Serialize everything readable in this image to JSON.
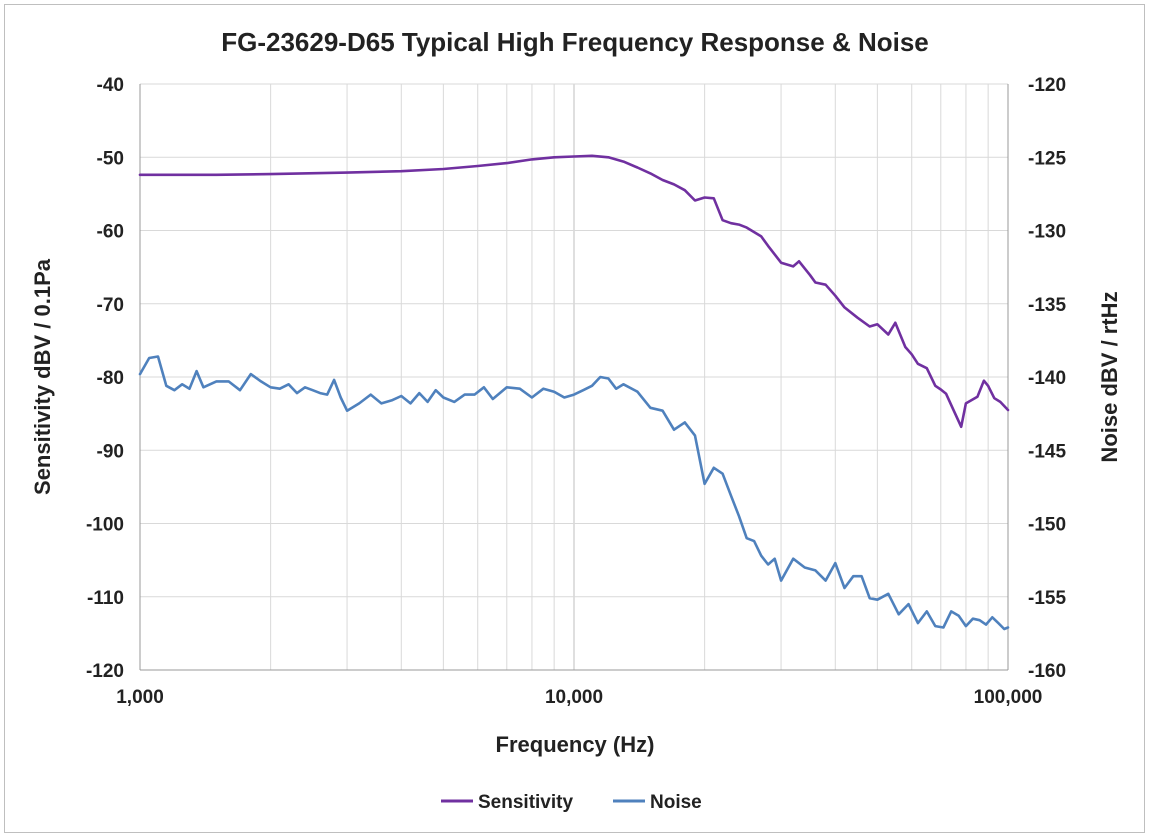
{
  "chart_data": {
    "type": "line",
    "title": "FG-23629-D65 Typical High Frequency Response & Noise",
    "xlabel": "Frequency (Hz)",
    "ylabel_left": "Sensitivity dBV / 0.1Pa",
    "ylabel_right": "Noise dBV / rtHz",
    "x_scale": "log",
    "xlim": [
      1000,
      100000
    ],
    "ylim_left": [
      -120,
      -40
    ],
    "ylim_right": [
      -160,
      -120
    ],
    "x_ticks": [
      1000,
      10000,
      100000
    ],
    "x_tick_labels": [
      "1,000",
      "10,000",
      "100,000"
    ],
    "y_left_ticks": [
      -40,
      -50,
      -60,
      -70,
      -80,
      -90,
      -100,
      -110,
      -120
    ],
    "y_right_ticks": [
      -120,
      -125,
      -130,
      -135,
      -140,
      -145,
      -150,
      -155,
      -160
    ],
    "grid": true,
    "legend_position": "bottom",
    "series": [
      {
        "name": "Sensitivity",
        "axis": "left",
        "color": "#7030a0",
        "x": [
          1000,
          1500,
          2000,
          3000,
          4000,
          5000,
          6000,
          7000,
          8000,
          9000,
          10000,
          11000,
          12000,
          13000,
          14000,
          15000,
          16000,
          17000,
          18000,
          19000,
          20000,
          21000,
          22000,
          23000,
          24000,
          25000,
          27000,
          28000,
          30000,
          32000,
          33000,
          35000,
          36000,
          38000,
          40000,
          42000,
          45000,
          48000,
          50000,
          53000,
          55000,
          58000,
          60000,
          62000,
          65000,
          68000,
          70000,
          72000,
          75000,
          78000,
          80000,
          85000,
          88000,
          90000,
          93000,
          96000,
          100000
        ],
        "y": [
          -52.4,
          -52.4,
          -52.3,
          -52.1,
          -51.9,
          -51.6,
          -51.2,
          -50.8,
          -50.3,
          -50.0,
          -49.9,
          -49.8,
          -50.0,
          -50.6,
          -51.4,
          -52.2,
          -53.1,
          -53.7,
          -54.5,
          -55.9,
          -55.5,
          -55.6,
          -58.6,
          -59.0,
          -59.2,
          -59.6,
          -60.8,
          -62.1,
          -64.4,
          -64.9,
          -64.2,
          -66.1,
          -67.1,
          -67.4,
          -68.9,
          -70.5,
          -71.9,
          -73.1,
          -72.8,
          -74.2,
          -72.6,
          -75.9,
          -76.9,
          -78.2,
          -78.8,
          -81.2,
          -81.7,
          -82.3,
          -84.6,
          -86.8,
          -83.6,
          -82.7,
          -80.5,
          -81.2,
          -82.9,
          -83.4,
          -84.5
        ]
      },
      {
        "name": "Noise",
        "axis": "right",
        "color": "#4f81bd",
        "x": [
          1000,
          1050,
          1100,
          1150,
          1200,
          1250,
          1300,
          1350,
          1400,
          1500,
          1600,
          1700,
          1800,
          1900,
          2000,
          2100,
          2200,
          2300,
          2400,
          2500,
          2600,
          2700,
          2800,
          2900,
          3000,
          3200,
          3400,
          3600,
          3800,
          4000,
          4200,
          4400,
          4600,
          4800,
          5000,
          5300,
          5600,
          5900,
          6200,
          6500,
          7000,
          7500,
          8000,
          8500,
          9000,
          9500,
          10000,
          10500,
          11000,
          11500,
          12000,
          12500,
          13000,
          14000,
          15000,
          16000,
          17000,
          18000,
          19000,
          20000,
          21000,
          22000,
          23000,
          24000,
          25000,
          26000,
          27000,
          28000,
          29000,
          30000,
          32000,
          34000,
          36000,
          38000,
          40000,
          42000,
          44000,
          46000,
          48000,
          50000,
          53000,
          56000,
          59000,
          62000,
          65000,
          68000,
          71000,
          74000,
          77000,
          80000,
          83000,
          86000,
          89000,
          92000,
          95000,
          98000,
          100000
        ],
        "y": [
          -139.8,
          -138.7,
          -138.6,
          -140.6,
          -140.9,
          -140.5,
          -140.8,
          -139.6,
          -140.7,
          -140.3,
          -140.3,
          -140.9,
          -139.8,
          -140.3,
          -140.7,
          -140.8,
          -140.5,
          -141.1,
          -140.7,
          -140.9,
          -141.1,
          -141.2,
          -140.2,
          -141.4,
          -142.3,
          -141.8,
          -141.2,
          -141.8,
          -141.6,
          -141.3,
          -141.8,
          -141.1,
          -141.7,
          -140.9,
          -141.4,
          -141.7,
          -141.2,
          -141.2,
          -140.7,
          -141.5,
          -140.7,
          -140.8,
          -141.4,
          -140.8,
          -141.0,
          -141.4,
          -141.2,
          -140.9,
          -140.6,
          -140.0,
          -140.1,
          -140.8,
          -140.5,
          -141.0,
          -142.1,
          -142.3,
          -143.6,
          -143.1,
          -144.0,
          -147.3,
          -146.2,
          -146.6,
          -148.1,
          -149.5,
          -151.0,
          -151.2,
          -152.2,
          -152.8,
          -152.4,
          -153.9,
          -152.4,
          -153.0,
          -153.2,
          -153.9,
          -152.7,
          -154.4,
          -153.6,
          -153.6,
          -155.1,
          -155.2,
          -154.8,
          -156.2,
          -155.5,
          -156.8,
          -156.0,
          -157.0,
          -157.1,
          -156.0,
          -156.3,
          -157.0,
          -156.5,
          -156.6,
          -156.9,
          -156.4,
          -156.8,
          -157.2,
          -157.1
        ]
      }
    ]
  }
}
